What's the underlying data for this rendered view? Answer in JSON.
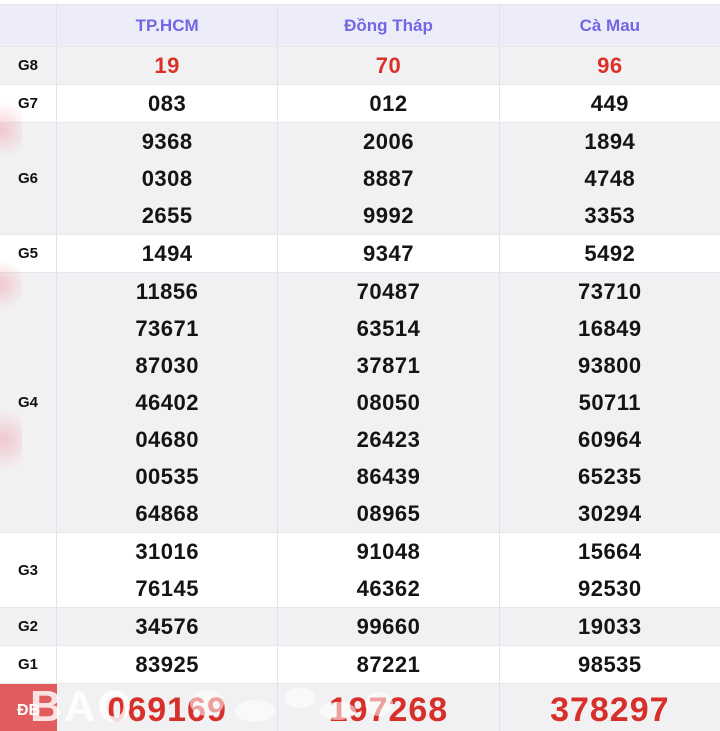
{
  "table": {
    "columns": [
      {
        "key": "tphcm",
        "label": "TP.HCM"
      },
      {
        "key": "dong-thap",
        "label": "Đồng Tháp"
      },
      {
        "key": "ca-mau",
        "label": "Cà Mau"
      }
    ],
    "rows": [
      {
        "key": "g8",
        "label": "G8",
        "style": "red",
        "shade": "gray",
        "cells": [
          [
            "19"
          ],
          [
            "70"
          ],
          [
            "96"
          ]
        ]
      },
      {
        "key": "g7",
        "label": "G7",
        "style": "black",
        "shade": "white",
        "cells": [
          [
            "083"
          ],
          [
            "012"
          ],
          [
            "449"
          ]
        ]
      },
      {
        "key": "g6",
        "label": "G6",
        "style": "black",
        "shade": "gray",
        "cells": [
          [
            "9368",
            "0308",
            "2655"
          ],
          [
            "2006",
            "8887",
            "9992"
          ],
          [
            "1894",
            "4748",
            "3353"
          ]
        ]
      },
      {
        "key": "g5",
        "label": "G5",
        "style": "black",
        "shade": "white",
        "cells": [
          [
            "1494"
          ],
          [
            "9347"
          ],
          [
            "5492"
          ]
        ]
      },
      {
        "key": "g4",
        "label": "G4",
        "style": "black",
        "shade": "gray",
        "cells": [
          [
            "11856",
            "73671",
            "87030",
            "46402",
            "04680",
            "00535",
            "64868"
          ],
          [
            "70487",
            "63514",
            "37871",
            "08050",
            "26423",
            "86439",
            "08965"
          ],
          [
            "73710",
            "16849",
            "93800",
            "50711",
            "60964",
            "65235",
            "30294"
          ]
        ]
      },
      {
        "key": "g3",
        "label": "G3",
        "style": "black",
        "shade": "white",
        "cells": [
          [
            "31016",
            "76145"
          ],
          [
            "91048",
            "46362"
          ],
          [
            "15664",
            "92530"
          ]
        ]
      },
      {
        "key": "g2",
        "label": "G2",
        "style": "black",
        "shade": "gray",
        "cells": [
          [
            "34576"
          ],
          [
            "99660"
          ],
          [
            "19033"
          ]
        ]
      },
      {
        "key": "g1",
        "label": "G1",
        "style": "black",
        "shade": "white",
        "cells": [
          [
            "83925"
          ],
          [
            "87221"
          ],
          [
            "98535"
          ]
        ]
      },
      {
        "key": "db",
        "label": "ĐB",
        "style": "red-big",
        "shade": "gray",
        "cells": [
          [
            "069169"
          ],
          [
            "197268"
          ],
          [
            "378297"
          ]
        ]
      }
    ]
  },
  "watermark": {
    "text": "BAO"
  },
  "colors": {
    "header_bg": "#ededfa",
    "header_text": "#7466e3",
    "row_gray": "#f1f1f3",
    "row_white": "#ffffff",
    "value_black": "#141414",
    "value_red": "#dc3128",
    "special_red_bg": "#e15d5d",
    "special_value_red": "#d7302a",
    "border": "#e6e6ec"
  }
}
